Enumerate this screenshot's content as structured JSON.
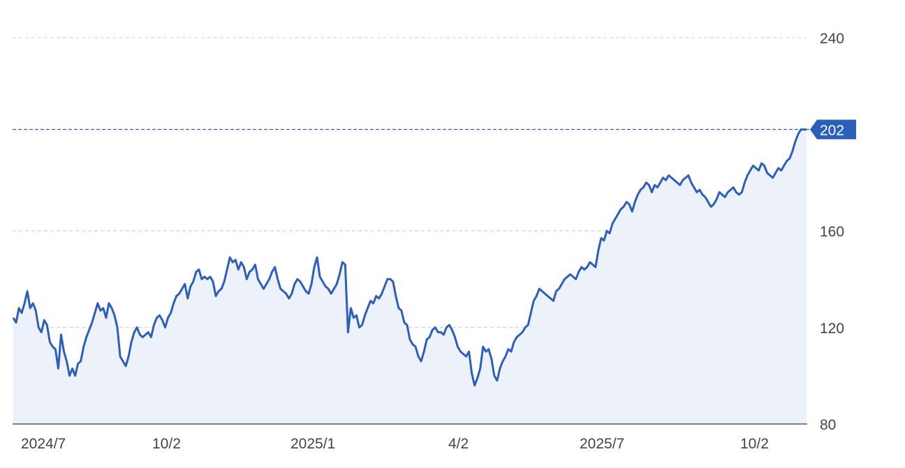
{
  "chart_data": {
    "type": "area",
    "x_axis": {
      "ticks": [
        "2024/7",
        "10/2",
        "2025/1",
        "4/2",
        "2025/7",
        "10/2"
      ]
    },
    "y_axis": {
      "ticks": [
        80,
        120,
        160,
        240
      ],
      "ylim": [
        80,
        240
      ],
      "grid": true
    },
    "current_price": {
      "value": 202,
      "label": "202"
    },
    "series": [
      {
        "values": [
          124,
          122,
          128,
          126,
          130,
          135,
          128,
          130,
          127,
          120,
          118,
          123,
          121,
          114,
          112,
          111,
          103,
          117,
          110,
          106,
          100,
          103,
          100,
          105,
          106,
          112,
          116,
          119,
          122,
          126,
          130,
          127,
          128,
          124,
          130,
          128,
          125,
          120,
          108,
          106,
          104,
          108,
          114,
          118,
          120,
          117,
          116,
          117,
          118,
          116,
          121,
          124,
          125,
          123,
          120,
          124,
          126,
          130,
          133,
          134,
          136,
          138,
          132,
          137,
          139,
          143,
          144,
          140,
          141,
          140,
          141,
          139,
          133,
          135,
          136,
          139,
          144,
          149,
          147,
          148,
          144,
          147,
          145,
          140,
          143,
          144,
          146,
          140,
          138,
          136,
          138,
          140,
          143,
          145,
          140,
          136,
          135,
          134,
          132,
          134,
          138,
          140,
          139,
          137,
          135,
          134,
          138,
          145,
          149,
          141,
          139,
          137,
          136,
          134,
          136,
          138,
          142,
          147,
          146,
          118,
          128,
          124,
          125,
          120,
          121,
          125,
          128,
          131,
          130,
          133,
          132,
          134,
          137,
          140,
          140,
          139,
          133,
          128,
          127,
          122,
          121,
          115,
          113,
          112,
          108,
          106,
          110,
          115,
          116,
          119,
          120,
          118,
          118,
          117,
          120,
          121,
          119,
          116,
          112,
          110,
          109,
          108,
          110,
          101,
          96,
          99,
          103,
          112,
          110,
          111,
          107,
          100,
          98,
          103,
          106,
          108,
          111,
          110,
          114,
          116,
          117,
          118,
          120,
          121,
          126,
          131,
          133,
          136,
          135,
          134,
          133,
          132,
          131,
          135,
          136,
          138,
          140,
          141,
          142,
          141,
          140,
          143,
          145,
          144,
          145,
          147,
          146,
          145,
          152,
          157,
          156,
          160,
          159,
          163,
          165,
          167,
          169,
          170,
          172,
          171,
          168,
          172,
          175,
          177,
          178,
          180,
          179,
          176,
          179,
          178,
          180,
          182,
          181,
          183,
          182,
          181,
          180,
          179,
          181,
          182,
          183,
          180,
          178,
          176,
          177,
          175,
          174,
          172,
          170,
          171,
          173,
          176,
          175,
          174,
          176,
          177,
          178,
          176,
          175,
          176,
          180,
          183,
          185,
          187,
          186,
          185,
          188,
          187,
          184,
          183,
          182,
          184,
          186,
          185,
          187,
          189,
          190,
          193,
          197,
          200,
          202,
          202,
          202
        ]
      }
    ]
  },
  "colors": {
    "line": "#2b5fbd",
    "fill": "#edf1fa",
    "grid": "#cccccc",
    "axis": "#555a66",
    "badge": "#2b5fbd",
    "text": "#444444"
  }
}
